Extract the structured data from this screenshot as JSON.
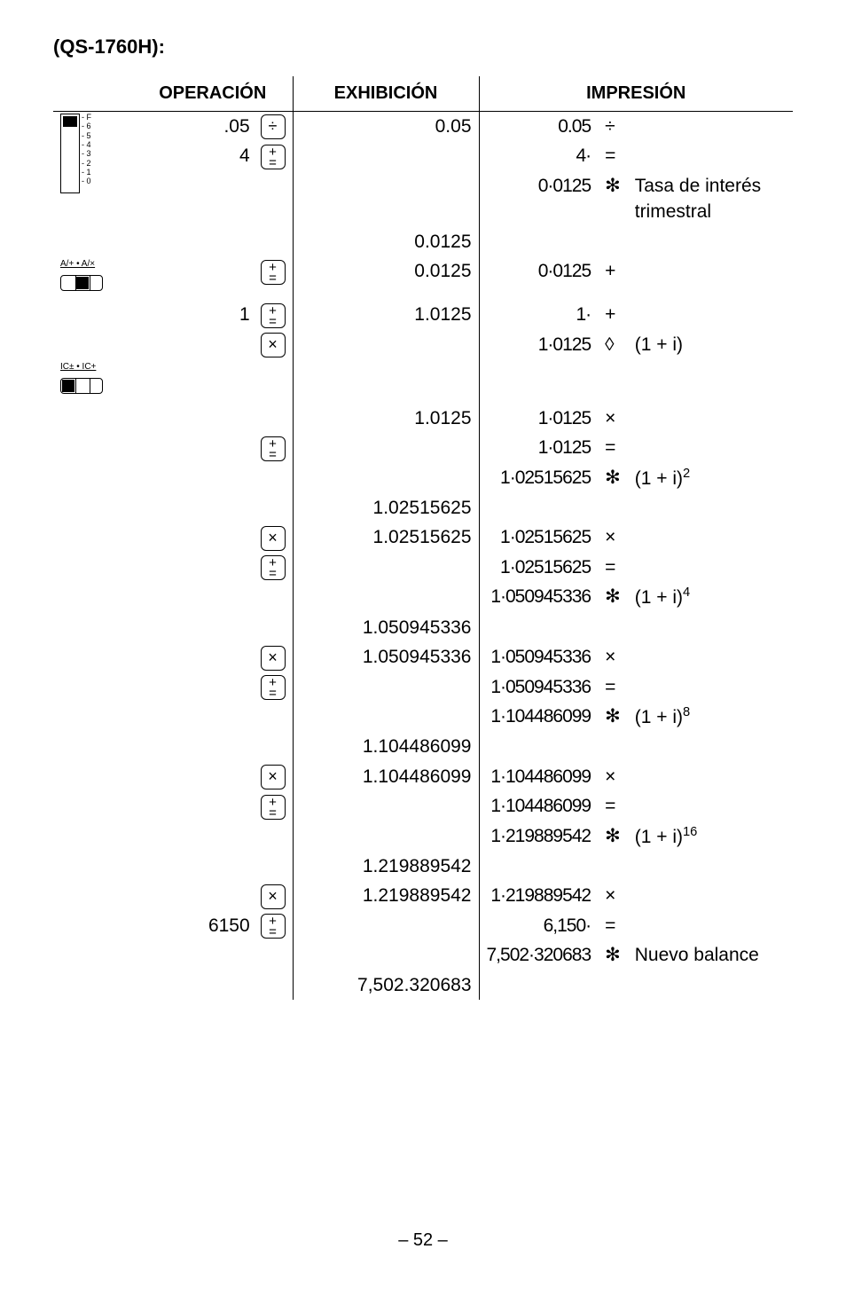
{
  "model_label": "(QS-1760H):",
  "headers": {
    "operacion": "OPERACIÓN",
    "exhibicion": "EXHIBICIÓN",
    "impresion": "IMPRESIÓN"
  },
  "slider_ticks": "F\n6\n5\n4\n3\n2\n1\n0",
  "switch_a_label": "A/+ • A/×",
  "switch_b_label": "IC± • IC+",
  "notes": {
    "interest": "Tasa de interés trimestral",
    "one_plus_i": "(1 + i)",
    "one_plus_i_2": "(1 + i)",
    "one_plus_i_4": "(1 + i)",
    "one_plus_i_8": "(1 + i)",
    "one_plus_i_16": "(1 + i)",
    "new_balance": "Nuevo balance"
  },
  "exp": {
    "e2": "2",
    "e4": "4",
    "e8": "8",
    "e16": "16"
  },
  "ops": {
    "divide": "÷",
    "equals": "=",
    "ast": "✻",
    "plus": "+",
    "diamond": "◊",
    "times": "×"
  },
  "rows": [
    {
      "op_num": ".05",
      "op_key": "div",
      "exh": "0.05",
      "iv": "0.05",
      "io": "divide"
    },
    {
      "op_num": "4",
      "op_key": "pm",
      "exh": "",
      "iv": "4·",
      "io": "equals"
    },
    {
      "op_num": "",
      "op_key": "",
      "exh": "",
      "iv": "0·0125",
      "io": "ast",
      "note": "interest"
    },
    {
      "op_num": "",
      "op_key": "",
      "exh": "0.0125",
      "iv": "",
      "io": ""
    },
    {
      "op_num": "",
      "op_key": "pm",
      "exh": "0.0125",
      "iv": "0·0125",
      "io": "plus"
    },
    {
      "op_num": "1",
      "op_key": "pm",
      "exh": "1.0125",
      "iv": "1·",
      "io": "plus"
    },
    {
      "op_num": "",
      "op_key": "mul",
      "exh": "",
      "iv": "1·0125",
      "io": "diamond",
      "note": "one_plus_i"
    },
    {
      "spacer": true
    },
    {
      "op_num": "",
      "op_key": "",
      "exh": "1.0125",
      "iv": "1·0125",
      "io": "times"
    },
    {
      "op_num": "",
      "op_key": "pm",
      "exh": "",
      "iv": "1·0125",
      "io": "equals"
    },
    {
      "op_num": "",
      "op_key": "",
      "exh": "",
      "iv": "1·02515625",
      "io": "ast",
      "note": "one_plus_i_2",
      "exp": "e2"
    },
    {
      "op_num": "",
      "op_key": "",
      "exh": "1.02515625",
      "iv": "",
      "io": ""
    },
    {
      "op_num": "",
      "op_key": "mul",
      "exh": "1.02515625",
      "iv": "1·02515625",
      "io": "times"
    },
    {
      "op_num": "",
      "op_key": "pm",
      "exh": "",
      "iv": "1·02515625",
      "io": "equals"
    },
    {
      "op_num": "",
      "op_key": "",
      "exh": "",
      "iv": "1·050945336",
      "io": "ast",
      "note": "one_plus_i_4",
      "exp": "e4"
    },
    {
      "op_num": "",
      "op_key": "",
      "exh": "1.050945336",
      "iv": "",
      "io": ""
    },
    {
      "op_num": "",
      "op_key": "mul",
      "exh": "1.050945336",
      "iv": "1·050945336",
      "io": "times"
    },
    {
      "op_num": "",
      "op_key": "pm",
      "exh": "",
      "iv": "1·050945336",
      "io": "equals"
    },
    {
      "op_num": "",
      "op_key": "",
      "exh": "",
      "iv": "1·104486099",
      "io": "ast",
      "note": "one_plus_i_8",
      "exp": "e8"
    },
    {
      "op_num": "",
      "op_key": "",
      "exh": "1.104486099",
      "iv": "",
      "io": ""
    },
    {
      "op_num": "",
      "op_key": "mul",
      "exh": "1.104486099",
      "iv": "1·104486099",
      "io": "times"
    },
    {
      "op_num": "",
      "op_key": "pm",
      "exh": "",
      "iv": "1·104486099",
      "io": "equals"
    },
    {
      "op_num": "",
      "op_key": "",
      "exh": "",
      "iv": "1·219889542",
      "io": "ast",
      "note": "one_plus_i_16",
      "exp": "e16"
    },
    {
      "op_num": "",
      "op_key": "",
      "exh": "1.219889542",
      "iv": "",
      "io": ""
    },
    {
      "op_num": "",
      "op_key": "mul",
      "exh": "1.219889542",
      "iv": "1·219889542",
      "io": "times"
    },
    {
      "op_num": "6150",
      "op_key": "pm",
      "exh": "",
      "iv": "6,150·",
      "io": "equals"
    },
    {
      "op_num": "",
      "op_key": "",
      "exh": "",
      "iv": "7,502·320683",
      "io": "ast",
      "note": "new_balance"
    },
    {
      "op_num": "",
      "op_key": "",
      "exh": "7,502.320683",
      "iv": "",
      "io": ""
    }
  ],
  "page_number": "– 52 –"
}
